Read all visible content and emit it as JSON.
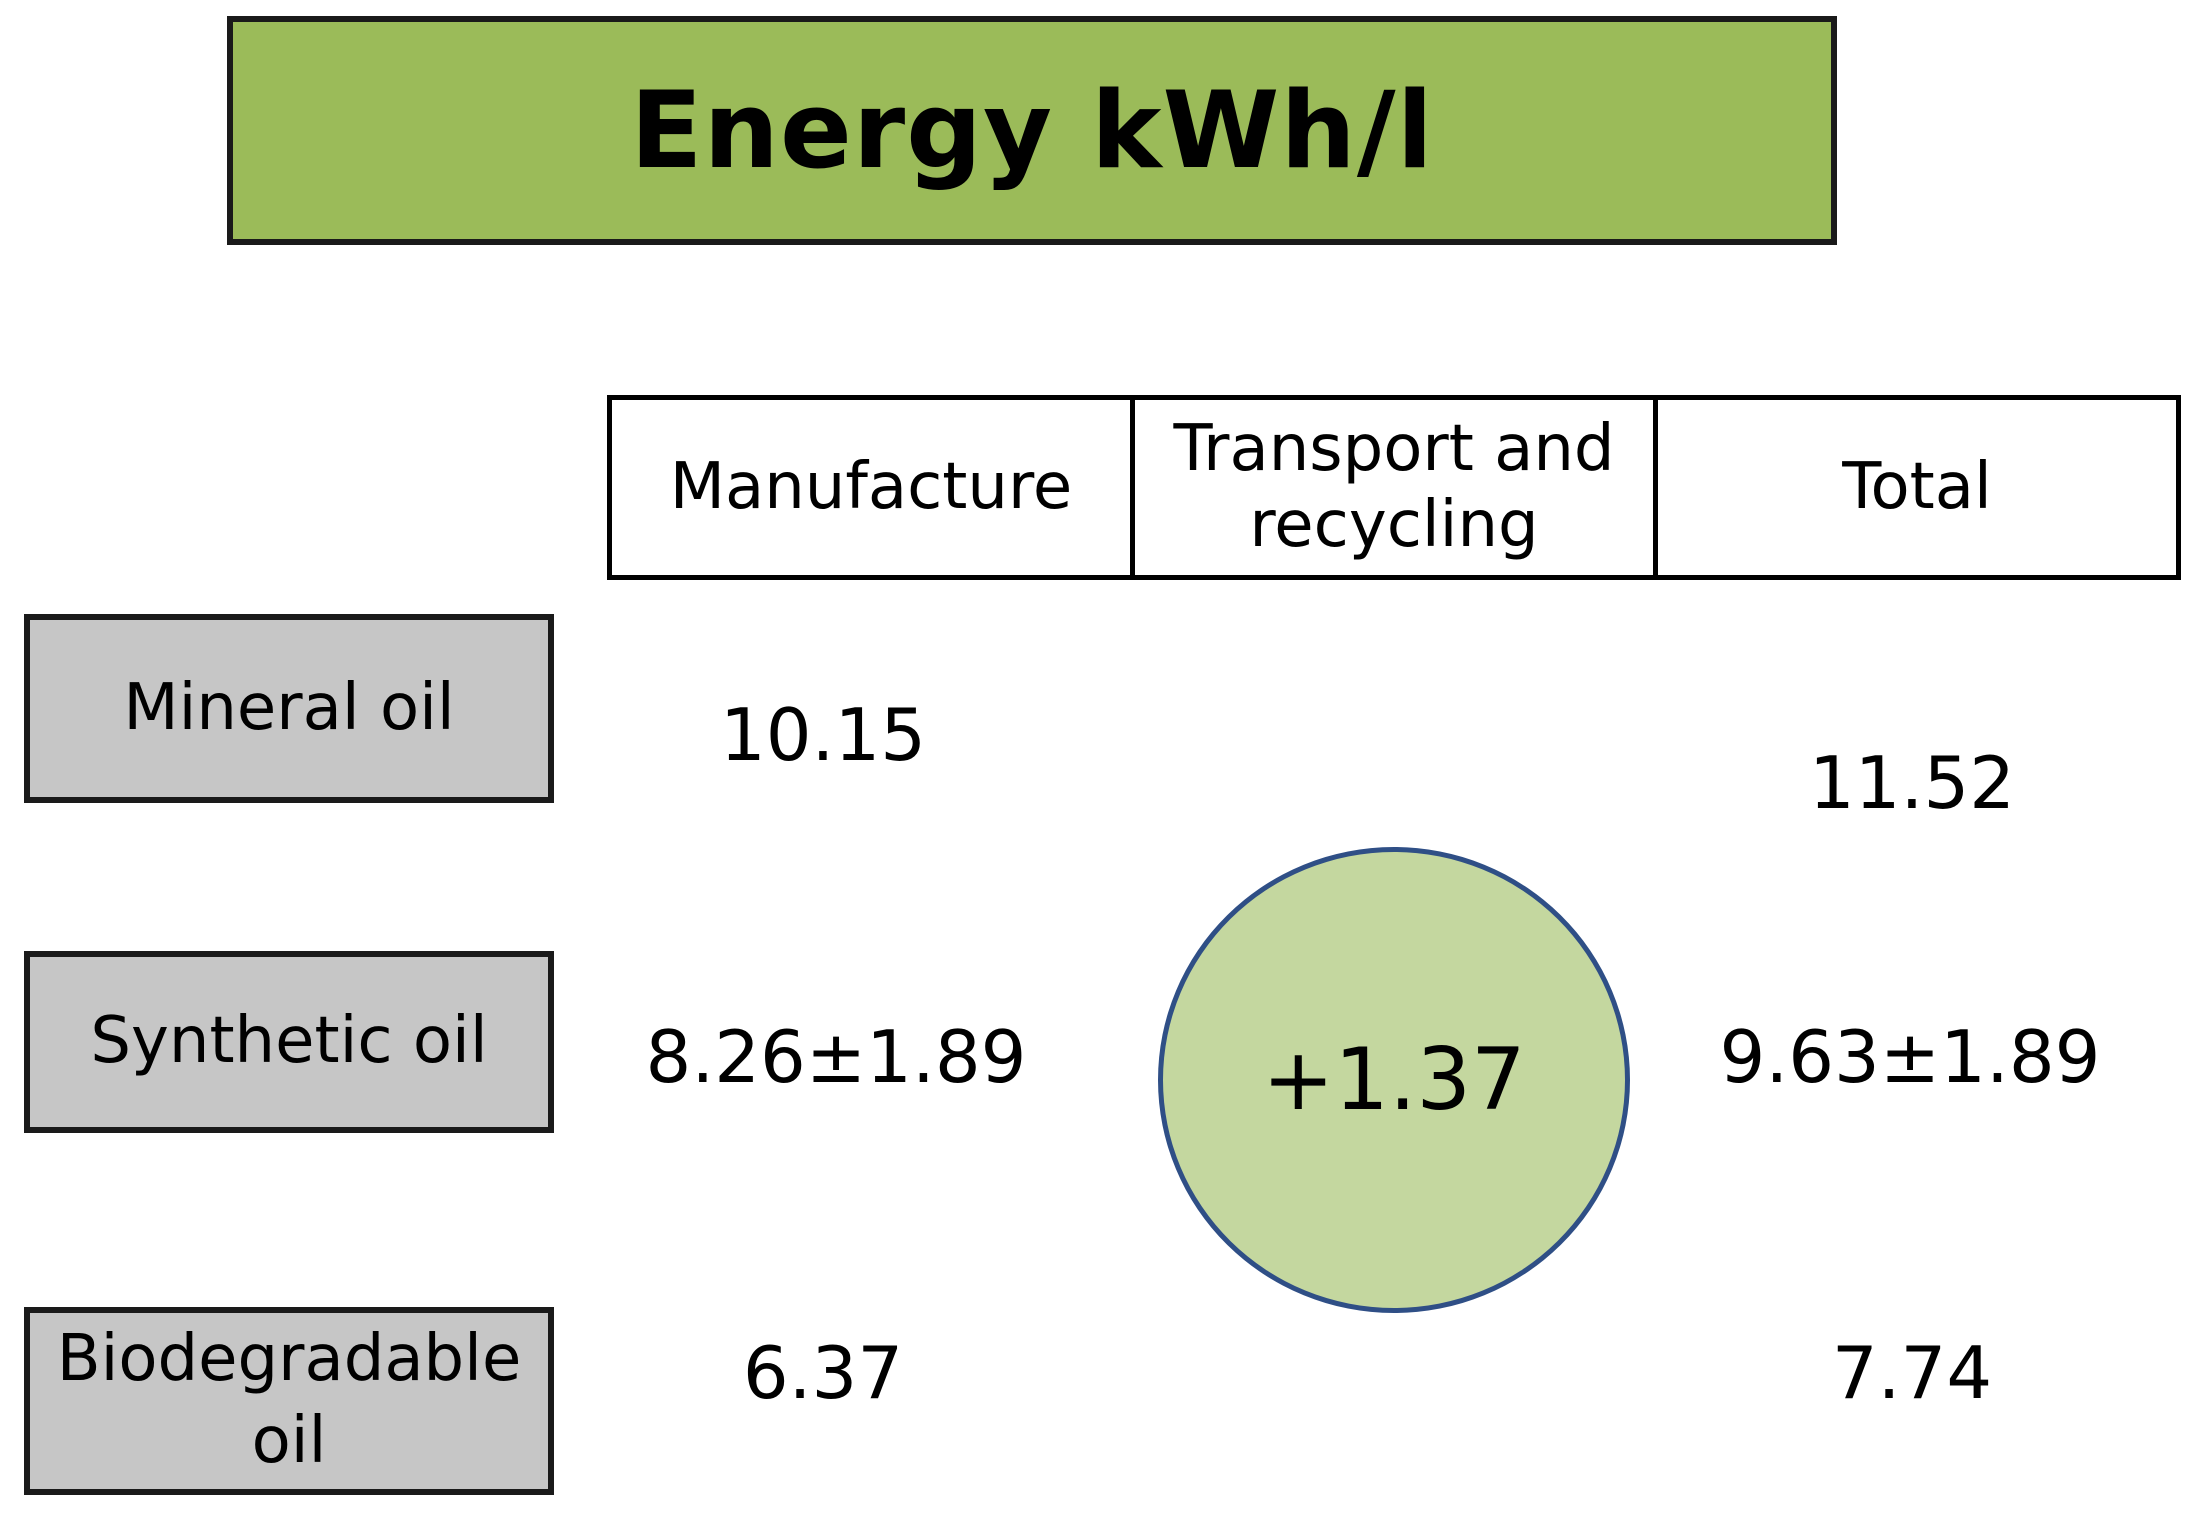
{
  "colors": {
    "title_fill": "#9bbb59",
    "row_label_fill": "#c6c6c6",
    "circle_fill": "#c4d79f",
    "circle_border": "#2f4f86"
  },
  "title": "Energy kWh/l",
  "columns": [
    "Manufacture",
    "Transport and recycling",
    "Total"
  ],
  "rows": [
    {
      "label": "Mineral oil",
      "manufacture": "10.15",
      "total": "11.52"
    },
    {
      "label": "Synthetic oil",
      "manufacture": "8.26±1.89",
      "total": "9.63±1.89"
    },
    {
      "label": "Biodegradable oil",
      "manufacture": "6.37",
      "total": "7.74"
    }
  ],
  "transport_value": "+1.37"
}
